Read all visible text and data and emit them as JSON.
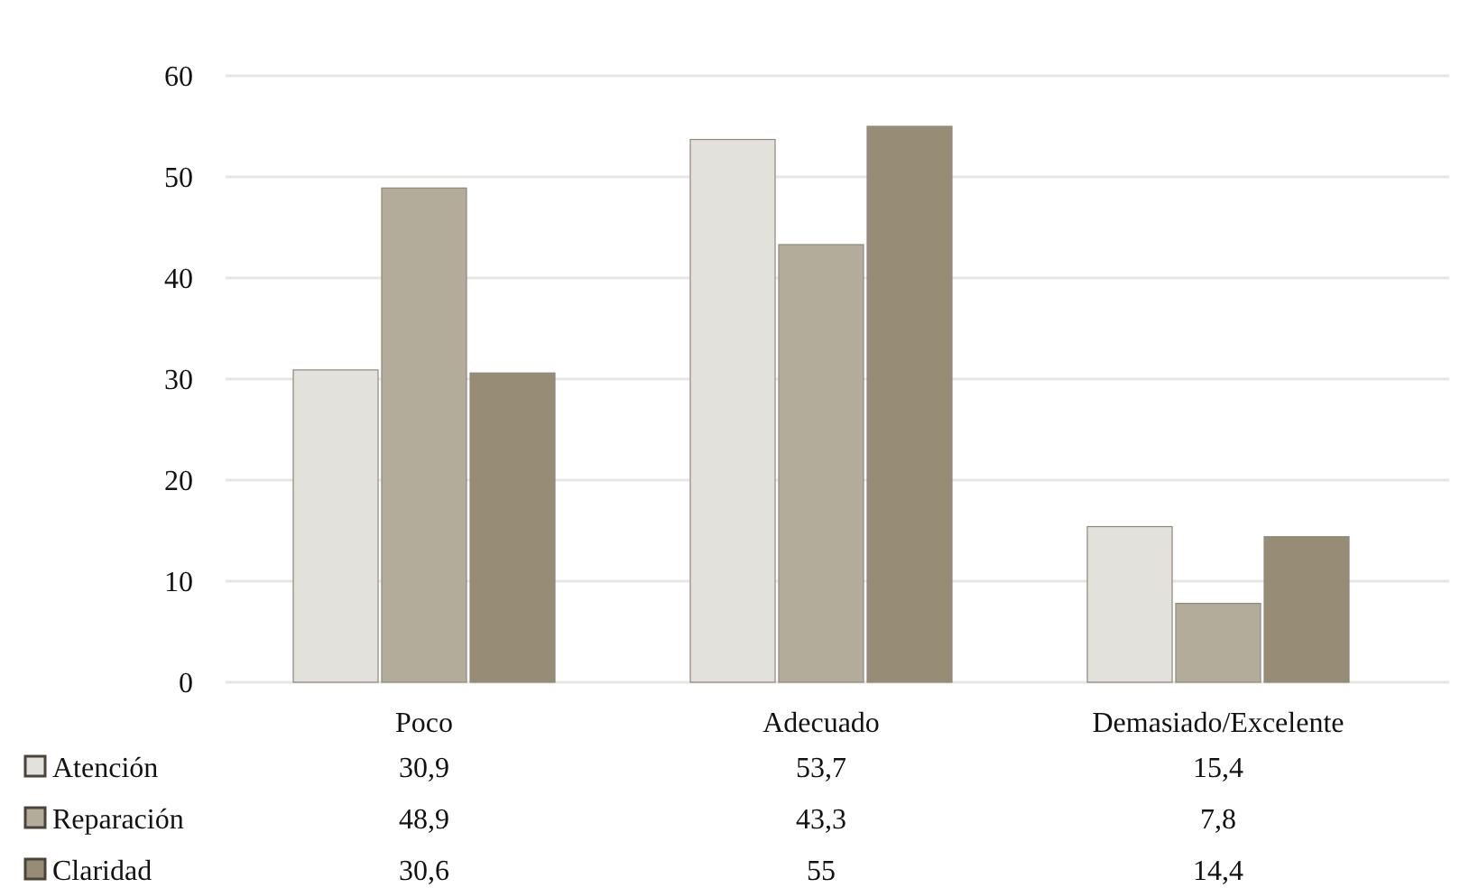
{
  "chart_data": {
    "type": "bar",
    "categories": [
      "Poco",
      "Adecuado",
      "Demasiado/Excelente"
    ],
    "series": [
      {
        "name": "Atención",
        "color": "#e2e1dc",
        "values": [
          30.9,
          53.7,
          15.4
        ],
        "value_labels": [
          "30,9",
          "53,7",
          "15,4"
        ]
      },
      {
        "name": "Reparación",
        "color": "#b4ac9a",
        "values": [
          48.9,
          43.3,
          7.8
        ],
        "value_labels": [
          "48,9",
          "43,3",
          "7,8"
        ]
      },
      {
        "name": "Claridad",
        "color": "#978c76",
        "values": [
          30.6,
          55,
          14.4
        ],
        "value_labels": [
          "30,6",
          "55",
          "14,4"
        ]
      }
    ],
    "ylim": [
      0,
      60
    ],
    "yticks": [
      0,
      10,
      20,
      30,
      40,
      50,
      60
    ],
    "grid": "y",
    "legend": "bottom"
  }
}
